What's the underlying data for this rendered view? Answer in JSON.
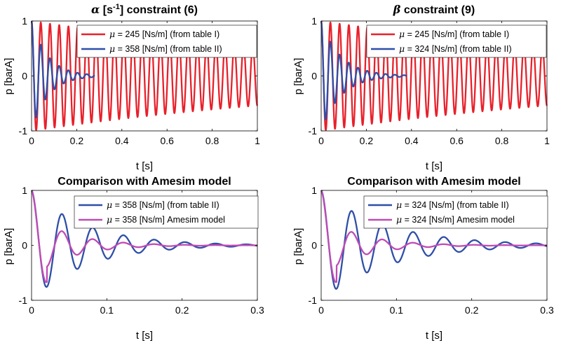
{
  "chart_data": [
    {
      "type": "line",
      "title_parts": [
        "α",
        " [s",
        "-1",
        "] constraint (6)"
      ],
      "xlabel": "t [s]",
      "ylabel": "p [barA]",
      "xlim": [
        0,
        1
      ],
      "ylim": [
        -1,
        1
      ],
      "xticks": [
        "0",
        "0.2",
        "0.4",
        "0.6",
        "0.8",
        "1"
      ],
      "xtick_values": [
        0,
        0.2,
        0.4,
        0.6,
        0.8,
        1
      ],
      "yticks": [
        "-1",
        "0",
        "1"
      ],
      "ytick_values": [
        -1,
        0,
        1
      ],
      "legend_position": "top-right",
      "series": [
        {
          "name_mu": "μ",
          "name": " = 245 [Ns/m] (from table I)",
          "color": "#e8202a",
          "model": {
            "freq_hz": 24.5,
            "zeta": 0.004,
            "amp": 1,
            "tmax": 1
          }
        },
        {
          "name_mu": "μ",
          "name": " = 358 [Ns/m] (from table II)",
          "color": "#2e4fa8",
          "model": {
            "freq_hz": 24.5,
            "zeta": 0.09,
            "amp": 1,
            "tmax": 0.28
          }
        }
      ]
    },
    {
      "type": "line",
      "title_parts": [
        "β",
        " constraint (9)"
      ],
      "xlabel": "t [s]",
      "ylabel": "p [barA]",
      "xlim": [
        0,
        1
      ],
      "ylim": [
        -1,
        1
      ],
      "xticks": [
        "0",
        "0.2",
        "0.4",
        "0.6",
        "0.8",
        "1"
      ],
      "xtick_values": [
        0,
        0.2,
        0.4,
        0.6,
        0.8,
        1
      ],
      "yticks": [
        "-1",
        "0",
        "1"
      ],
      "ytick_values": [
        -1,
        0,
        1
      ],
      "legend_position": "top-right",
      "series": [
        {
          "name_mu": "μ",
          "name": " = 245 [Ns/m] (from table I)",
          "color": "#e8202a",
          "model": {
            "freq_hz": 24.5,
            "zeta": 0.004,
            "amp": 1,
            "tmax": 1
          }
        },
        {
          "name_mu": "μ",
          "name": " = 324 [Ns/m] (from table II)",
          "color": "#2e4fa8",
          "model": {
            "freq_hz": 24.5,
            "zeta": 0.075,
            "amp": 1,
            "tmax": 0.38
          }
        }
      ]
    },
    {
      "type": "line",
      "title_parts": [
        "Comparison with Amesim model"
      ],
      "xlabel": "t [s]",
      "ylabel": "p [barA]",
      "xlim": [
        0,
        0.3
      ],
      "ylim": [
        -1,
        1
      ],
      "xticks": [
        "0",
        "0.1",
        "0.2",
        "0.3"
      ],
      "xtick_values": [
        0,
        0.1,
        0.2,
        0.3
      ],
      "yticks": [
        "-1",
        "0",
        "1"
      ],
      "ytick_values": [
        -1,
        0,
        1
      ],
      "legend_position": "top-right",
      "series": [
        {
          "name_mu": "μ",
          "name": " = 358 [Ns/m] (from table II)",
          "color": "#2e4fa8",
          "model": {
            "freq_hz": 24.5,
            "zeta": 0.09,
            "amp": 1,
            "tmax": 0.3
          }
        },
        {
          "name_mu": "μ",
          "name": " = 358 [Ns/m] Amesim model",
          "color": "#c04bb5",
          "model": {
            "freq_hz": 24.5,
            "zeta": 0.13,
            "amp": 1,
            "tmax": 0.3,
            "scale_after_first": 0.58
          }
        }
      ]
    },
    {
      "type": "line",
      "title_parts": [
        "Comparison with Amesim model"
      ],
      "xlabel": "t [s]",
      "ylabel": "p [barA]",
      "xlim": [
        0,
        0.3
      ],
      "ylim": [
        -1,
        1
      ],
      "xticks": [
        "0",
        "0.1",
        "0.2",
        "0.3"
      ],
      "xtick_values": [
        0,
        0.1,
        0.2,
        0.3
      ],
      "yticks": [
        "-1",
        "0",
        "1"
      ],
      "ytick_values": [
        -1,
        0,
        1
      ],
      "legend_position": "top-right",
      "series": [
        {
          "name_mu": "μ",
          "name": " = 324 [Ns/m] (from table II)",
          "color": "#2e4fa8",
          "model": {
            "freq_hz": 24.5,
            "zeta": 0.075,
            "amp": 1,
            "tmax": 0.3
          }
        },
        {
          "name_mu": "μ",
          "name": " = 324 [Ns/m] Amesim model",
          "color": "#c04bb5",
          "model": {
            "freq_hz": 24.5,
            "zeta": 0.13,
            "amp": 1,
            "tmax": 0.3,
            "scale_after_first": 0.55
          }
        }
      ]
    }
  ]
}
